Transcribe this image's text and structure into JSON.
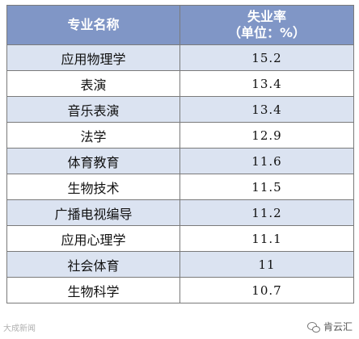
{
  "table": {
    "header": {
      "col1": "专业名称",
      "col2_line1": "失业率",
      "col2_line2": "（单位：%）"
    },
    "rows": [
      {
        "major": "应用物理学",
        "rate": "15.2"
      },
      {
        "major": "表演",
        "rate": "13.4"
      },
      {
        "major": "音乐表演",
        "rate": "13.4"
      },
      {
        "major": "法学",
        "rate": "12.9"
      },
      {
        "major": "体育教育",
        "rate": "11.6"
      },
      {
        "major": "生物技术",
        "rate": "11.5"
      },
      {
        "major": "广播电视编导",
        "rate": "11.2"
      },
      {
        "major": "应用心理学",
        "rate": "11.1"
      },
      {
        "major": "社会体育",
        "rate": "11"
      },
      {
        "major": "生物科学",
        "rate": "10.7"
      }
    ]
  },
  "watermarks": {
    "left": "大成新闻",
    "right": "肯云汇"
  },
  "icons": {
    "watermark_right": "wechat-chat-icon"
  },
  "colors": {
    "header_bg": "#8096c6",
    "stripe_bg": "#dbe3f1"
  }
}
